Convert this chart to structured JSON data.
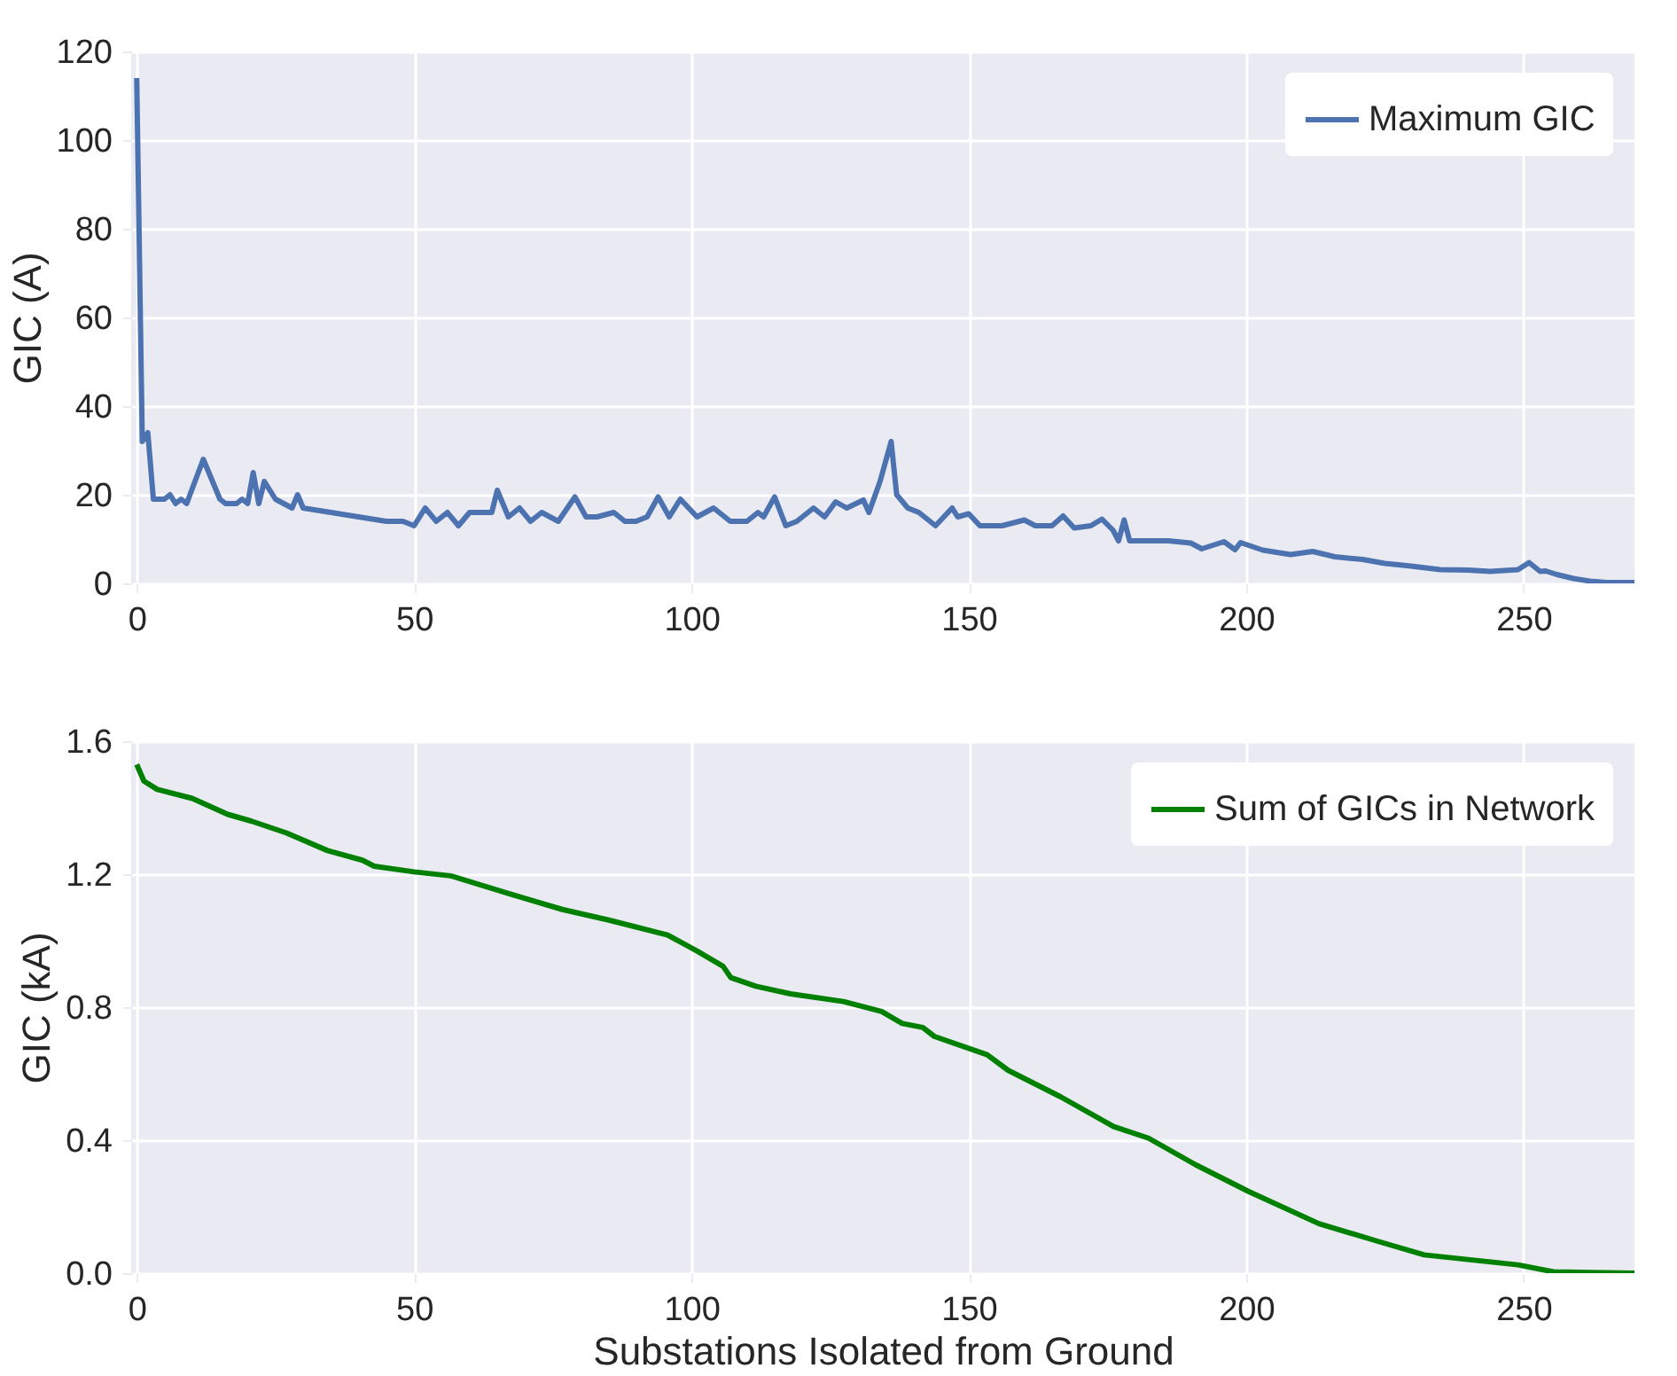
{
  "chart_data": [
    {
      "type": "line",
      "ylabel": "GIC (A)",
      "xlim": [
        -1,
        270
      ],
      "ylim": [
        0,
        120
      ],
      "xticks": [
        0,
        50,
        100,
        150,
        200,
        250
      ],
      "yticks": [
        0,
        20,
        40,
        60,
        80,
        100,
        120
      ],
      "grid": true,
      "legend": "top right",
      "series": [
        {
          "name": "Maximum GIC",
          "color": "#4c72b0",
          "x": [
            0,
            1,
            2,
            3,
            5,
            6,
            7,
            8,
            9,
            12,
            15,
            16,
            18,
            19,
            20,
            21,
            22,
            23,
            25,
            28,
            29,
            30,
            35,
            40,
            45,
            48,
            50,
            52,
            54,
            56,
            58,
            60,
            64,
            65,
            67,
            69,
            71,
            73,
            76,
            79,
            81,
            83,
            86,
            88,
            90,
            92,
            94,
            96,
            98,
            101,
            104,
            107,
            110,
            112,
            113,
            115,
            117,
            119,
            122,
            124,
            126,
            128,
            131,
            132,
            134,
            136,
            137,
            139,
            141,
            144,
            147,
            148,
            150,
            152,
            153,
            156,
            160,
            162,
            165,
            167,
            169,
            172,
            174,
            176,
            177,
            178,
            179,
            182,
            186,
            190,
            192,
            196,
            198,
            199,
            203,
            208,
            212,
            216,
            221,
            225,
            229,
            235,
            240,
            244,
            249,
            251,
            253,
            254,
            256,
            259,
            262,
            265,
            270
          ],
          "values": [
            114,
            32,
            34,
            19,
            19,
            20,
            18,
            19,
            18,
            28,
            19,
            18,
            18,
            19,
            18,
            25,
            18,
            23,
            19,
            17,
            20,
            17,
            16,
            15,
            14,
            14,
            13,
            17,
            14,
            16,
            13,
            16,
            16,
            21,
            15,
            17,
            14,
            16,
            14,
            19.5,
            15,
            15,
            16,
            14,
            14,
            15,
            19.5,
            15,
            19,
            15,
            17,
            14,
            14,
            16,
            15,
            19.5,
            13,
            14,
            17,
            15,
            18.4,
            17,
            18.8,
            16,
            23,
            32,
            20,
            17,
            16,
            13,
            17,
            15,
            15.7,
            13,
            13,
            13,
            14.3,
            13,
            13,
            15.2,
            12.5,
            13,
            14.5,
            12,
            9.6,
            14.3,
            9.6,
            9.6,
            9.6,
            9.1,
            7.8,
            9.4,
            7.6,
            9.2,
            7.5,
            6.5,
            7.2,
            6,
            5.4,
            4.5,
            4,
            3.1,
            3,
            2.7,
            3.1,
            4.7,
            2.7,
            2.8,
            2,
            1.1,
            0.5,
            0.2,
            0.2
          ]
        }
      ]
    },
    {
      "type": "line",
      "xlabel": "Substations Isolated from Ground",
      "ylabel": "GIC (kA)",
      "xlim": [
        -1,
        270
      ],
      "ylim": [
        0,
        1.6
      ],
      "xticks": [
        0,
        50,
        100,
        150,
        200,
        250
      ],
      "yticks": [
        {
          "value": 0,
          "label": "0.0"
        },
        0.4,
        0.8,
        1.2,
        1.6
      ],
      "grid": true,
      "legend": "top right",
      "series": [
        {
          "name": "Sum of GICs in Network",
          "color": "#008000",
          "x": [
            0,
            1.3,
            3.7,
            10,
            16.4,
            20.6,
            27,
            34.4,
            40.7,
            42.8,
            50,
            56.6,
            67.2,
            76.7,
            85.1,
            95.7,
            101,
            105.7,
            107.1,
            111.6,
            117.9,
            127.4,
            134.3,
            138,
            141.7,
            143.8,
            153.3,
            157.1,
            166.6,
            176.1,
            182.4,
            190.9,
            200.4,
            213.1,
            223.7,
            232.1,
            249,
            255.4,
            270
          ],
          "values": [
            1.53,
            1.48,
            1.455,
            1.428,
            1.38,
            1.36,
            1.324,
            1.271,
            1.242,
            1.224,
            1.207,
            1.195,
            1.141,
            1.094,
            1.062,
            1.017,
            0.969,
            0.923,
            0.889,
            0.863,
            0.84,
            0.817,
            0.787,
            0.751,
            0.739,
            0.712,
            0.657,
            0.61,
            0.53,
            0.441,
            0.406,
            0.326,
            0.246,
            0.149,
            0.096,
            0.055,
            0.025,
            0.004,
            0
          ]
        }
      ]
    }
  ]
}
